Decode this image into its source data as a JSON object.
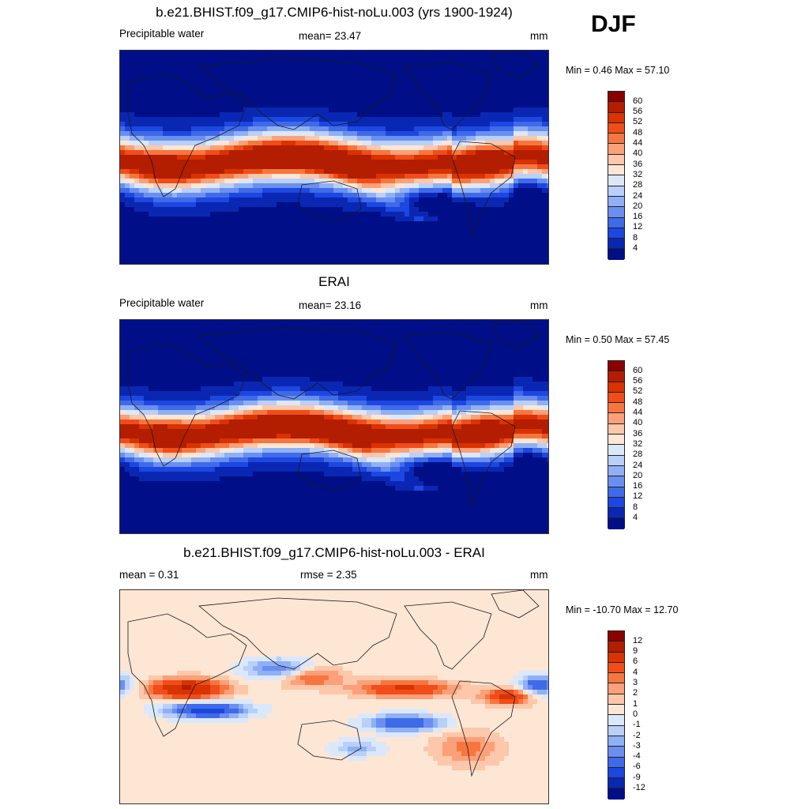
{
  "season": "DJF",
  "panels": [
    {
      "title": "b.e21.BHIST.f09_g17.CMIP6-hist-noLu.003 (yrs 1900-1924)",
      "left_label": "Precipitable water",
      "center_label": "mean=  23.47",
      "right_label": "mm",
      "minmax": "Min =   0.46 Max =  57.10",
      "field": "model"
    },
    {
      "title": "ERAI",
      "left_label": "Precipitable water",
      "center_label": "mean=  23.16",
      "right_label": "mm",
      "minmax": "Min =   0.50 Max =  57.45",
      "field": "obs"
    },
    {
      "title": "b.e21.BHIST.f09_g17.CMIP6-hist-noLu.003 - ERAI",
      "left_label": "mean =   0.31",
      "center_label": "rmse =   2.35",
      "right_label": "mm",
      "minmax": "Min = -10.70 Max =  12.70",
      "field": "diff"
    }
  ],
  "colorbars": {
    "absolute": {
      "colors": [
        "#8b0000",
        "#b31d00",
        "#d93300",
        "#f04d1a",
        "#f7763f",
        "#fba079",
        "#fcc7aa",
        "#fde6d4",
        "#dbe8fb",
        "#b8d0fa",
        "#8fb0f5",
        "#6a8ff0",
        "#3f6ae8",
        "#1c47e0",
        "#0a27b3",
        "#000f87"
      ],
      "labels": [
        "60",
        "56",
        "52",
        "48",
        "44",
        "40",
        "36",
        "32",
        "28",
        "24",
        "20",
        "16",
        "12",
        "8",
        "4"
      ]
    },
    "difference": {
      "colors": [
        "#8b0000",
        "#b31d00",
        "#d93300",
        "#f04d1a",
        "#f7763f",
        "#fba079",
        "#fcc7aa",
        "#fde6d4",
        "#dbe8fb",
        "#b8d0fa",
        "#8fb0f5",
        "#6a8ff0",
        "#3f6ae8",
        "#1c47e0",
        "#0a27b3",
        "#000f87"
      ],
      "labels": [
        "12",
        "9",
        "6",
        "4",
        "3",
        "2",
        "1",
        "0",
        "-1",
        "-2",
        "-3",
        "-4",
        "-6",
        "-9",
        "-12"
      ]
    }
  }
}
